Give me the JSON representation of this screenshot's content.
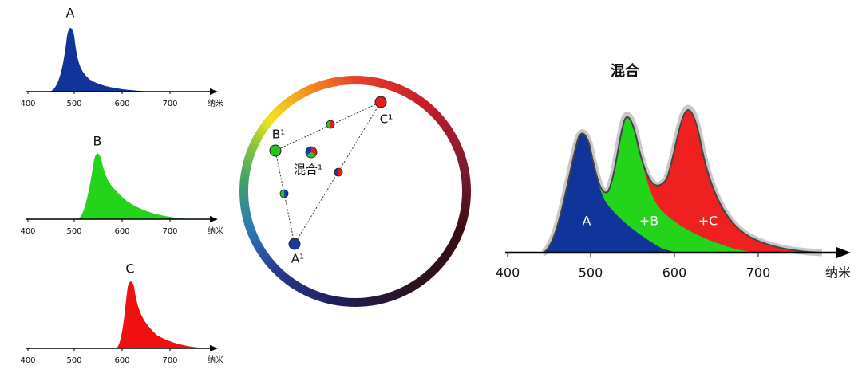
{
  "small_charts": [
    {
      "label": "A",
      "ticks": [
        "400",
        "500",
        "600",
        "700"
      ],
      "unit": "纳米"
    },
    {
      "label": "B",
      "ticks": [
        "400",
        "500",
        "600",
        "700"
      ],
      "unit": "纳米"
    },
    {
      "label": "C",
      "ticks": [
        "400",
        "500",
        "600",
        "700"
      ],
      "unit": "纳米"
    }
  ],
  "color_wheel": {
    "points": [
      {
        "label": "B¹"
      },
      {
        "label": "C¹"
      },
      {
        "label": "A¹"
      }
    ],
    "mix_label": "混合¹"
  },
  "mixed_chart": {
    "title": "混合",
    "components": [
      "A",
      "+B",
      "+C"
    ],
    "ticks": [
      "400",
      "500",
      "600",
      "700"
    ],
    "unit": "纳米"
  }
}
